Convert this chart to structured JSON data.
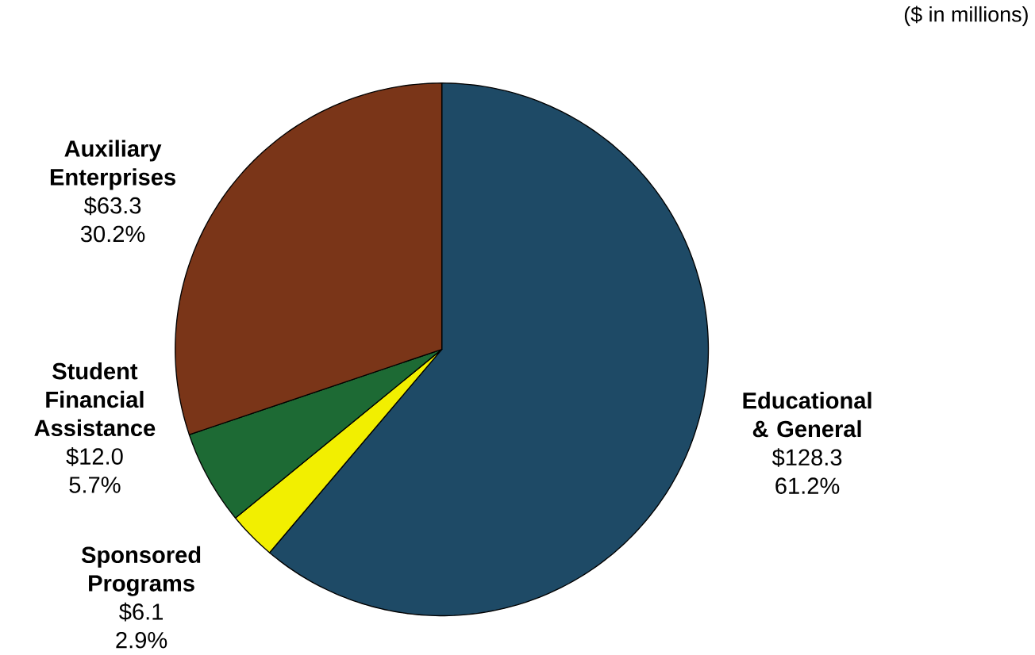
{
  "chart_data": {
    "type": "pie",
    "subtitle": "($ in millions)",
    "categories": [
      "Educational & General",
      "Sponsored Programs",
      "Student Financial Assistance",
      "Auxiliary Enterprises"
    ],
    "values": [
      128.3,
      6.1,
      12.0,
      63.3
    ],
    "value_labels": [
      "$128.3",
      "$6.1",
      "$12.0",
      "$63.3"
    ],
    "annotations": [
      "61.2%",
      "2.9%",
      "5.7%",
      "30.2%"
    ],
    "colors": [
      "#1e4a66",
      "#f2ef00",
      "#1d6a34",
      "#7a3518"
    ]
  }
}
